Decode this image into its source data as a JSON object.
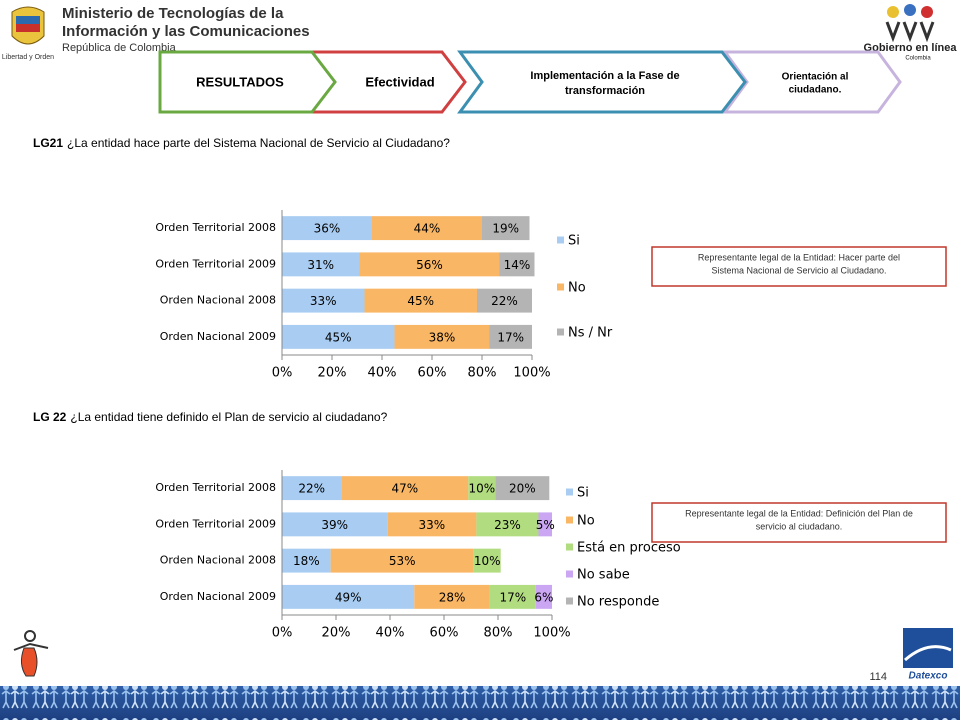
{
  "header": {
    "ministry_lines": [
      "Ministerio de Tecnologías de la",
      "Información y las Comunicaciones"
    ],
    "republic": "República de Colombia",
    "motto": "Libertad y Orden",
    "gel_title": "Gobierno en línea",
    "gel_country": "Colombia"
  },
  "tabs": [
    {
      "lines": [
        "RESULTADOS"
      ]
    },
    {
      "lines": [
        "Efectividad"
      ]
    },
    {
      "lines": [
        "Implementación  a la Fase de",
        "transformación"
      ]
    },
    {
      "lines": [
        "Orientación al",
        "ciudadano."
      ]
    }
  ],
  "questions": [
    {
      "code": "LG21",
      "text": "¿La entidad hace parte del Sistema Nacional de Servicio al Ciudadano?"
    },
    {
      "code": "LG 22",
      "text": "¿La entidad tiene definido el Plan de servicio al ciudadano?"
    }
  ],
  "notes": [
    {
      "lines": [
        "Representante legal de la Entidad: Hacer parte del",
        "Sistema Nacional de Servicio al Ciudadano."
      ]
    },
    {
      "lines": [
        "Representante legal de la Entidad: Definición del Plan de",
        "servicio al ciudadano."
      ]
    }
  ],
  "page_number": "114",
  "footer_logo": "Datexco",
  "chart_data": [
    {
      "type": "bar",
      "orientation": "horizontal",
      "stacked": true,
      "categories": [
        "Orden Territorial 2008",
        "Orden Territorial 2009",
        "Orden Nacional 2008",
        "Orden Nacional 2009"
      ],
      "series": [
        {
          "name": "Si",
          "color": "#a9cdf2",
          "values": [
            36,
            31,
            33,
            45
          ],
          "value_labels": [
            "36%",
            "31%",
            "33%",
            "45%"
          ]
        },
        {
          "name": "No",
          "color": "#f9b665",
          "values": [
            44,
            56,
            45,
            38
          ],
          "value_labels": [
            "44%",
            "56%",
            "45%",
            "38%"
          ]
        },
        {
          "name": "Ns / Nr",
          "color": "#b4b4b4",
          "values": [
            19,
            14,
            22,
            17
          ],
          "value_labels": [
            "19%",
            "14%",
            "22%",
            "17%"
          ]
        }
      ],
      "xlim": [
        0,
        100
      ],
      "xticks": [
        {
          "value": 0,
          "label": "0%"
        },
        {
          "value": 20,
          "label": "20%"
        },
        {
          "value": 40,
          "label": "40%"
        },
        {
          "value": 60,
          "label": "60%"
        },
        {
          "value": 80,
          "label": "80%"
        },
        {
          "value": 100,
          "label": "100%"
        }
      ],
      "legend": "right"
    },
    {
      "type": "bar",
      "orientation": "horizontal",
      "stacked": true,
      "categories": [
        "Orden Territorial 2008",
        "Orden Territorial 2009",
        "Orden Nacional 2008",
        "Orden Nacional 2009"
      ],
      "series": [
        {
          "name": "Si",
          "color": "#a9cdf2",
          "values": [
            22,
            39,
            18,
            49
          ],
          "value_labels": [
            "22%",
            "39%",
            "18%",
            "49%"
          ]
        },
        {
          "name": "No",
          "color": "#f9b665",
          "values": [
            47,
            33,
            53,
            28
          ],
          "value_labels": [
            "47%",
            "33%",
            "53%",
            "28%"
          ]
        },
        {
          "name": "Está en proceso",
          "color": "#b2dc80",
          "values": [
            10,
            23,
            10,
            17
          ],
          "value_labels": [
            "10%",
            "23%",
            "10%",
            "17%"
          ]
        },
        {
          "name": "No sabe",
          "color": "#cba6f2",
          "values": [
            null,
            5,
            null,
            6
          ],
          "value_labels": [
            null,
            "5%",
            null,
            "6%"
          ]
        },
        {
          "name": "No responde",
          "color": "#b4b4b4",
          "values": [
            20,
            null,
            null,
            null
          ],
          "value_labels": [
            "20%",
            null,
            null,
            null
          ]
        }
      ],
      "xlim": [
        0,
        100
      ],
      "xticks": [
        {
          "value": 0,
          "label": "0%"
        },
        {
          "value": 20,
          "label": "20%"
        },
        {
          "value": 40,
          "label": "40%"
        },
        {
          "value": 60,
          "label": "60%"
        },
        {
          "value": 80,
          "label": "80%"
        },
        {
          "value": 100,
          "label": "100%"
        }
      ],
      "legend": "right"
    }
  ]
}
